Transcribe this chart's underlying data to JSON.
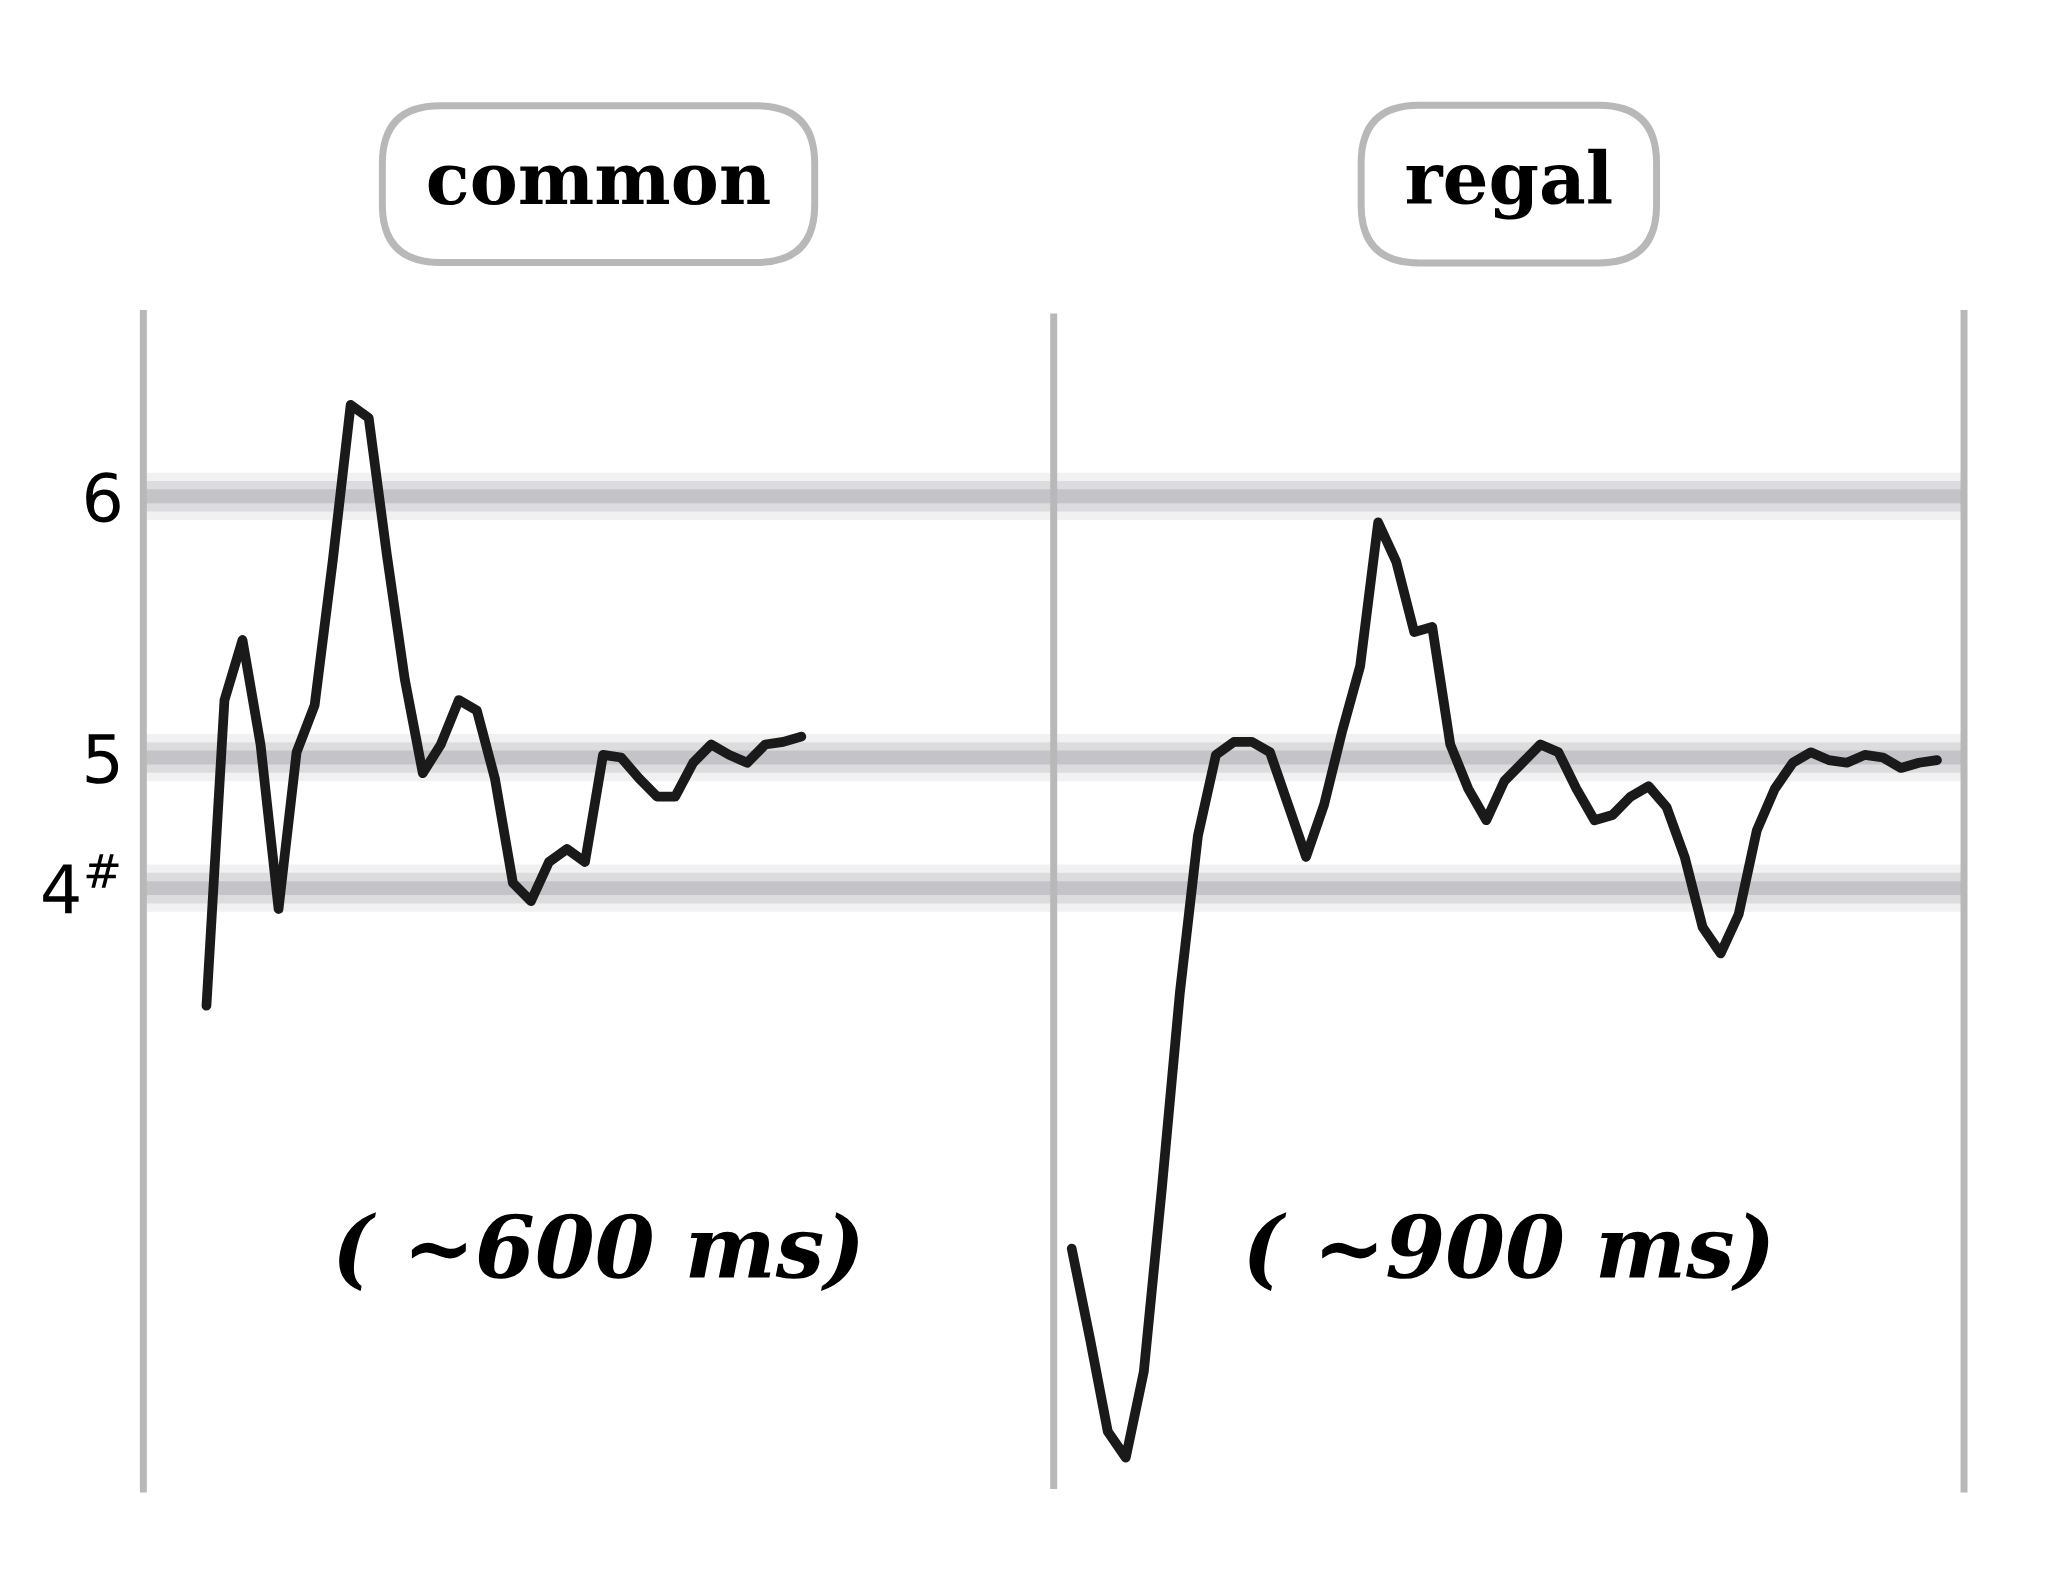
{
  "chart_data": {
    "type": "line",
    "grid": "y",
    "tick_labels": "y",
    "annotations": [
      "common",
      "( ~600 ms)",
      "regal",
      "( ~900 ms)"
    ],
    "ylim": [
      2.2,
      6.7
    ],
    "yticks": [
      {
        "value": 4.5,
        "label": "4$^{#}$"
      },
      5,
      6
    ],
    "categories": [
      null,
      null,
      null,
      null,
      null,
      null,
      null,
      null,
      null,
      null,
      null,
      null,
      null,
      null,
      null,
      null,
      null,
      null,
      null,
      null,
      null,
      null,
      null,
      null,
      null,
      null,
      null,
      null,
      null,
      null,
      null,
      null,
      null,
      null,
      null,
      null,
      null,
      null,
      null,
      null,
      null,
      null,
      null,
      null,
      null,
      null,
      null,
      null,
      null,
      null,
      null,
      null,
      null,
      null,
      null,
      null,
      null,
      null,
      null,
      null,
      null,
      null,
      null,
      null,
      null,
      null,
      null,
      null,
      null,
      null,
      null,
      null,
      null,
      null,
      null,
      null,
      null,
      null,
      null,
      null,
      null,
      null,
      null,
      null,
      null,
      null,
      null,
      null,
      null,
      null,
      null,
      null,
      null,
      null,
      null,
      null,
      null,
      null,
      null,
      null,
      null
    ],
    "series": [
      {
        "color": "#1a1a1a",
        "values": [
          null,
          null,
          null,
          4.05,
          5.22,
          5.45,
          5.05,
          4.42,
          5.02,
          5.2,
          5.75,
          6.35,
          6.3,
          5.78,
          5.3,
          4.94,
          5.05,
          5.22,
          5.18,
          4.92,
          4.52,
          4.45,
          4.6,
          4.65,
          4.6,
          5.01,
          5,
          4.92,
          4.85,
          4.85,
          4.98,
          5.05,
          5.01,
          4.98,
          5.05,
          5.06,
          5.08,
          null,
          null,
          null,
          null,
          null,
          null,
          null,
          null,
          null,
          null,
          null,
          null,
          null,
          null,
          null,
          null,
          null,
          null,
          null,
          null,
          null,
          null,
          null,
          null,
          null,
          null,
          null,
          null,
          null,
          null,
          null,
          null,
          null,
          null,
          null,
          null,
          null,
          null,
          null,
          null,
          null,
          null,
          null,
          null,
          null,
          null,
          null,
          null,
          null,
          null,
          null,
          null,
          null,
          null,
          null,
          null,
          null,
          null,
          null,
          null,
          null,
          null,
          null,
          null
        ]
      },
      {
        "color": "#1a1a1a",
        "values": [
          null,
          null,
          null,
          null,
          null,
          null,
          null,
          null,
          null,
          null,
          null,
          null,
          null,
          null,
          null,
          null,
          null,
          null,
          null,
          null,
          null,
          null,
          null,
          null,
          null,
          null,
          null,
          null,
          null,
          null,
          null,
          null,
          null,
          null,
          null,
          null,
          null,
          null,
          null,
          null,
          null,
          null,
          null,
          null,
          null,
          null,
          null,
          null,
          null,
          null,
          null,
          3.12,
          2.78,
          2.42,
          2.32,
          2.65,
          3.35,
          4.1,
          4.7,
          5.01,
          5.06,
          5.06,
          5.02,
          4.82,
          4.62,
          4.82,
          5.1,
          5.35,
          5.9,
          5.75,
          5.48,
          5.5,
          5.05,
          4.88,
          4.76,
          4.91,
          4.98,
          5.05,
          5.02,
          4.88,
          4.76,
          4.78,
          4.85,
          4.89,
          4.81,
          4.62,
          4.35,
          4.25,
          4.4,
          4.72,
          4.88,
          4.98,
          5.02,
          4.99,
          4.98,
          5.01,
          5,
          4.96,
          4.98,
          4.99,
          null
        ]
      }
    ]
  }
}
